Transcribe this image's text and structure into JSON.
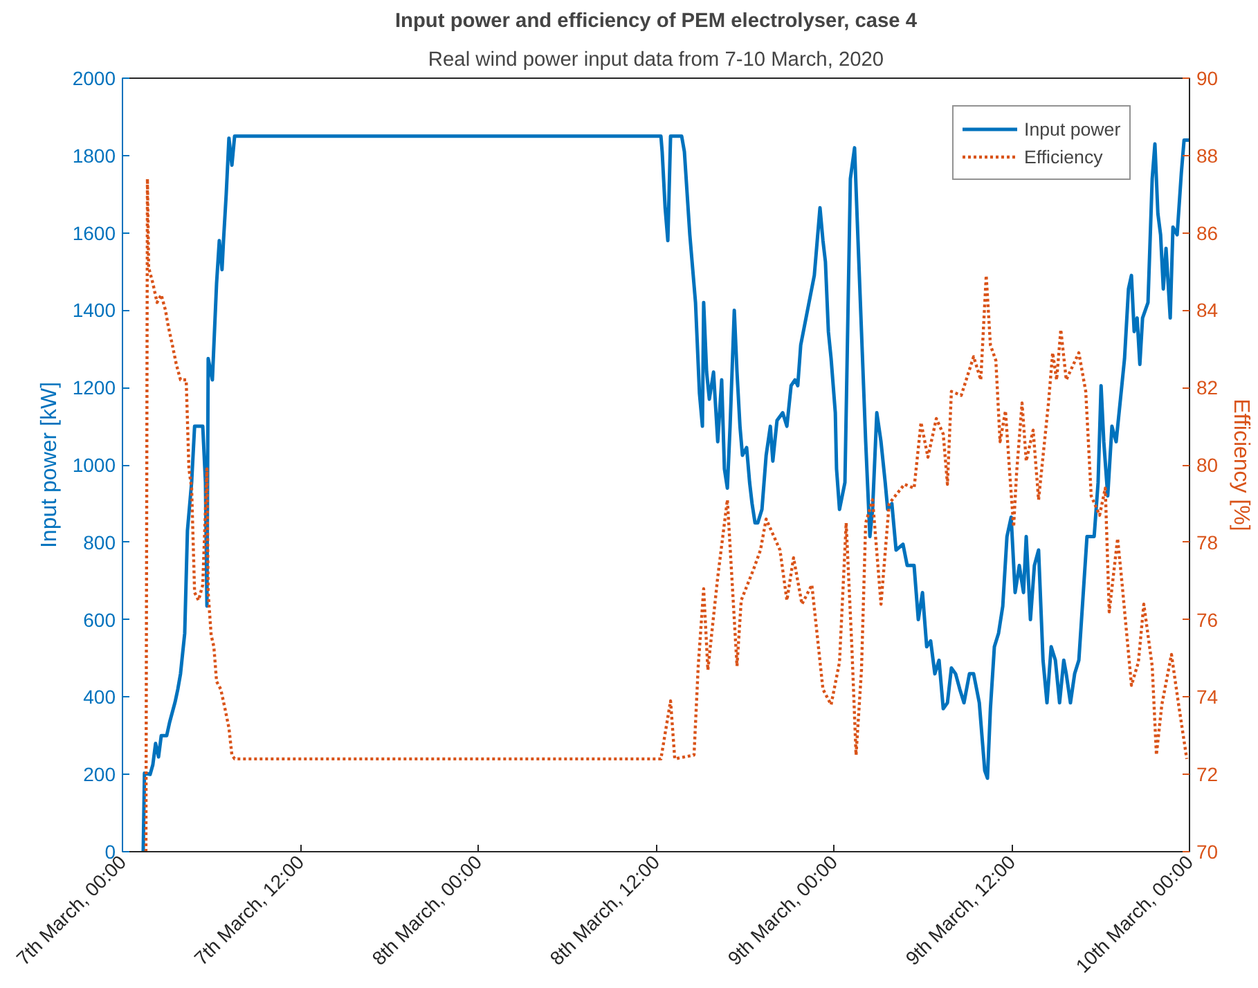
{
  "chart_data": {
    "type": "line",
    "title": "Input power and efficiency of PEM electrolyser, case 4",
    "subtitle": "Real wind power input data from 7-10 March, 2020",
    "ylabel": "Input power [kW]",
    "y2label": "Efficiency [%]",
    "xlim": [
      "2020-03-07T00:00",
      "2020-03-10T00:00"
    ],
    "xticks": [
      {
        "value": "2020-03-07T00:00",
        "label": "7th March, 00:00"
      },
      {
        "value": "2020-03-07T12:00",
        "label": "7th March, 12:00"
      },
      {
        "value": "2020-03-08T00:00",
        "label": "8th March, 00:00"
      },
      {
        "value": "2020-03-08T12:00",
        "label": "8th March, 12:00"
      },
      {
        "value": "2020-03-09T00:00",
        "label": "9th March, 00:00"
      },
      {
        "value": "2020-03-09T12:00",
        "label": "9th March, 12:00"
      },
      {
        "value": "2020-03-10T00:00",
        "label": "10th March, 00:00"
      }
    ],
    "ylim": [
      0,
      2000
    ],
    "yticks": [
      0,
      200,
      400,
      600,
      800,
      1000,
      1200,
      1400,
      1600,
      1800,
      2000
    ],
    "y2lim": [
      70,
      90
    ],
    "y2ticks": [
      70,
      72,
      74,
      76,
      78,
      80,
      82,
      84,
      86,
      88,
      90
    ],
    "grid": false,
    "legend": "top right",
    "marker": "none",
    "series": [
      {
        "name": "Input power",
        "color": "#0072bd",
        "line_style": "solid",
        "x": [
          "2020-03-07T01:24",
          "2020-03-07T01:29",
          "2020-03-07T01:52",
          "2020-03-07T02:03",
          "2020-03-07T02:14",
          "2020-03-07T02:26",
          "2020-03-07T02:37",
          "2020-03-07T02:59",
          "2020-03-07T03:11",
          "2020-03-07T03:33",
          "2020-03-07T03:44",
          "2020-03-07T03:55",
          "2020-03-07T04:12",
          "2020-03-07T04:23",
          "2020-03-07T04:40",
          "2020-03-07T04:52",
          "2020-03-07T05:25",
          "2020-03-07T05:36",
          "2020-03-07T05:42",
          "2020-03-07T05:47",
          "2020-03-07T06:04",
          "2020-03-07T06:21",
          "2020-03-07T06:32",
          "2020-03-07T06:43",
          "2020-03-07T06:49",
          "2020-03-07T07:00",
          "2020-03-07T07:11",
          "2020-03-07T07:23",
          "2020-03-07T07:34",
          "2020-03-08T12:20",
          "2020-03-08T12:25",
          "2020-03-08T12:37",
          "2020-03-08T12:48",
          "2020-03-08T12:59",
          "2020-03-08T13:44",
          "2020-03-08T13:55",
          "2020-03-08T14:17",
          "2020-03-08T14:40",
          "2020-03-08T14:56",
          "2020-03-08T15:08",
          "2020-03-08T15:13",
          "2020-03-08T15:25",
          "2020-03-08T15:36",
          "2020-03-08T15:53",
          "2020-03-08T16:10",
          "2020-03-08T16:26",
          "2020-03-08T16:37",
          "2020-03-08T16:49",
          "2020-03-08T17:00",
          "2020-03-08T17:17",
          "2020-03-08T17:28",
          "2020-03-08T17:40",
          "2020-03-08T17:50",
          "2020-03-08T18:07",
          "2020-03-08T18:19",
          "2020-03-08T18:29",
          "2020-03-08T18:41",
          "2020-03-08T18:52",
          "2020-03-08T19:09",
          "2020-03-08T19:26",
          "2020-03-08T19:43",
          "2020-03-08T19:53",
          "2020-03-08T20:10",
          "2020-03-08T20:33",
          "2020-03-08T20:50",
          "2020-03-08T21:07",
          "2020-03-08T21:23",
          "2020-03-08T21:34",
          "2020-03-08T21:46",
          "2020-03-08T22:41",
          "2020-03-08T23:04",
          "2020-03-08T23:16",
          "2020-03-08T23:26",
          "2020-03-08T23:38",
          "2020-03-08T23:49",
          "2020-03-09T00:06",
          "2020-03-09T00:11",
          "2020-03-09T00:23",
          "2020-03-09T00:45",
          "2020-03-09T01:07",
          "2020-03-09T01:24",
          "2020-03-09T01:35",
          "2020-03-09T01:52",
          "2020-03-09T02:09",
          "2020-03-09T02:26",
          "2020-03-09T02:37",
          "2020-03-09T02:54",
          "2020-03-09T03:11",
          "2020-03-09T03:28",
          "2020-03-09T03:38",
          "2020-03-09T03:55",
          "2020-03-09T04:12",
          "2020-03-09T04:40",
          "2020-03-09T04:57",
          "2020-03-09T05:25",
          "2020-03-09T05:42",
          "2020-03-09T05:59",
          "2020-03-09T06:16",
          "2020-03-09T06:32",
          "2020-03-09T06:49",
          "2020-03-09T07:06",
          "2020-03-09T07:23",
          "2020-03-09T07:40",
          "2020-03-09T07:56",
          "2020-03-09T08:13",
          "2020-03-09T08:30",
          "2020-03-09T08:47",
          "2020-03-09T09:09",
          "2020-03-09T09:26",
          "2020-03-09T09:49",
          "2020-03-09T10:11",
          "2020-03-09T10:22",
          "2020-03-09T10:34",
          "2020-03-09T10:50",
          "2020-03-09T11:07",
          "2020-03-09T11:24",
          "2020-03-09T11:41",
          "2020-03-09T11:58",
          "2020-03-09T12:14",
          "2020-03-09T12:31",
          "2020-03-09T12:48",
          "2020-03-09T12:59",
          "2020-03-09T13:16",
          "2020-03-09T13:32",
          "2020-03-09T13:49",
          "2020-03-09T14:07",
          "2020-03-09T14:23",
          "2020-03-09T14:40",
          "2020-03-09T14:57",
          "2020-03-09T15:14",
          "2020-03-09T15:31",
          "2020-03-09T15:41",
          "2020-03-09T15:58",
          "2020-03-09T16:15",
          "2020-03-09T16:32",
          "2020-03-09T17:05",
          "2020-03-09T17:34",
          "2020-03-09T17:50",
          "2020-03-09T18:02",
          "2020-03-09T18:13",
          "2020-03-09T18:29",
          "2020-03-09T18:46",
          "2020-03-09T19:03",
          "2020-03-09T19:26",
          "2020-03-09T19:37",
          "2020-03-09T19:53",
          "2020-03-09T20:05",
          "2020-03-09T20:16",
          "2020-03-09T20:28",
          "2020-03-09T20:39",
          "2020-03-09T20:50",
          "2020-03-09T21:12",
          "2020-03-09T21:29",
          "2020-03-09T21:40",
          "2020-03-09T21:52",
          "2020-03-09T22:03",
          "2020-03-09T22:14",
          "2020-03-09T22:25",
          "2020-03-09T22:42",
          "2020-03-09T22:53",
          "2020-03-09T23:10",
          "2020-03-09T23:27",
          "2020-03-09T23:38",
          "2020-03-10T00:00"
        ],
        "values": [
          0,
          203,
          200,
          225,
          280,
          245,
          300,
          300,
          335,
          387,
          420,
          460,
          565,
          830,
          955,
          1100,
          1100,
          955,
          635,
          1275,
          1220,
          1470,
          1580,
          1505,
          1580,
          1700,
          1845,
          1775,
          1850,
          1850,
          1810,
          1665,
          1580,
          1850,
          1850,
          1810,
          1595,
          1420,
          1185,
          1100,
          1420,
          1240,
          1170,
          1240,
          1060,
          1220,
          990,
          940,
          1100,
          1400,
          1240,
          1100,
          1025,
          1045,
          955,
          900,
          850,
          850,
          885,
          1025,
          1100,
          1010,
          1115,
          1135,
          1100,
          1205,
          1220,
          1205,
          1310,
          1490,
          1665,
          1580,
          1525,
          1345,
          1275,
          1135,
          990,
          885,
          955,
          1740,
          1820,
          1630,
          1345,
          1060,
          815,
          885,
          1135,
          1060,
          955,
          885,
          900,
          780,
          795,
          740,
          740,
          600,
          670,
          530,
          545,
          460,
          495,
          370,
          385,
          475,
          460,
          420,
          385,
          460,
          460,
          385,
          210,
          190,
          370,
          530,
          565,
          635,
          815,
          865,
          670,
          740,
          670,
          815,
          600,
          740,
          780,
          495,
          385,
          530,
          495,
          385,
          495,
          460,
          385,
          460,
          495,
          815,
          815,
          955,
          1205,
          1060,
          920,
          1100,
          1060,
          1205,
          1275,
          1455,
          1490,
          1345,
          1380,
          1260,
          1380,
          1420,
          1740,
          1830,
          1650,
          1595,
          1455,
          1560,
          1380,
          1615,
          1595,
          1755,
          1840,
          1840
        ]
      },
      {
        "name": "Efficiency",
        "color": "#d95319",
        "line_style": "dotted",
        "axis": "y2",
        "x": [
          "2020-03-07T01:35",
          "2020-03-07T01:41",
          "2020-03-07T01:46",
          "2020-03-07T02:03",
          "2020-03-07T02:20",
          "2020-03-07T02:37",
          "2020-03-07T02:54",
          "2020-03-07T03:05",
          "2020-03-07T03:22",
          "2020-03-07T03:38",
          "2020-03-07T03:55",
          "2020-03-07T04:18",
          "2020-03-07T04:29",
          "2020-03-07T04:40",
          "2020-03-07T04:52",
          "2020-03-07T05:08",
          "2020-03-07T05:25",
          "2020-03-07T05:42",
          "2020-03-07T05:47",
          "2020-03-07T05:59",
          "2020-03-07T06:10",
          "2020-03-07T06:21",
          "2020-03-07T06:38",
          "2020-03-07T06:55",
          "2020-03-07T07:11",
          "2020-03-07T07:23",
          "2020-03-07T07:34",
          "2020-03-08T12:20",
          "2020-03-08T12:59",
          "2020-03-08T13:16",
          "2020-03-08T14:34",
          "2020-03-08T14:51",
          "2020-03-08T15:13",
          "2020-03-08T15:30",
          "2020-03-08T16:10",
          "2020-03-08T16:49",
          "2020-03-08T17:28",
          "2020-03-08T17:45",
          "2020-03-08T18:35",
          "2020-03-08T19:03",
          "2020-03-08T19:26",
          "2020-03-08T20:22",
          "2020-03-08T20:50",
          "2020-03-08T21:17",
          "2020-03-08T21:51",
          "2020-03-08T22:31",
          "2020-03-08T23:16",
          "2020-03-08T23:49",
          "2020-03-09T00:23",
          "2020-03-09T00:50",
          "2020-03-09T01:13",
          "2020-03-09T01:30",
          "2020-03-09T01:52",
          "2020-03-09T02:09",
          "2020-03-09T02:37",
          "2020-03-09T03:11",
          "2020-03-09T03:44",
          "2020-03-09T04:46",
          "2020-03-09T05:25",
          "2020-03-09T05:53",
          "2020-03-09T06:21",
          "2020-03-09T06:55",
          "2020-03-09T07:23",
          "2020-03-09T07:40",
          "2020-03-09T07:56",
          "2020-03-09T08:36",
          "2020-03-09T09:26",
          "2020-03-09T09:55",
          "2020-03-09T10:17",
          "2020-03-09T10:34",
          "2020-03-09T10:56",
          "2020-03-09T11:13",
          "2020-03-09T11:35",
          "2020-03-09T11:52",
          "2020-03-09T12:08",
          "2020-03-09T12:20",
          "2020-03-09T12:42",
          "2020-03-09T12:59",
          "2020-03-09T13:27",
          "2020-03-09T13:49",
          "2020-03-09T14:29",
          "2020-03-09T14:46",
          "2020-03-09T15:02",
          "2020-03-09T15:19",
          "2020-03-09T15:41",
          "2020-03-09T16:32",
          "2020-03-09T17:00",
          "2020-03-09T17:22",
          "2020-03-09T17:56",
          "2020-03-09T18:19",
          "2020-03-09T18:35",
          "2020-03-09T19:09",
          "2020-03-09T19:26",
          "2020-03-09T20:05",
          "2020-03-09T20:33",
          "2020-03-09T20:55",
          "2020-03-09T21:29",
          "2020-03-09T21:46",
          "2020-03-09T22:08",
          "2020-03-09T22:47",
          "2020-03-09T23:16",
          "2020-03-09T23:49"
        ],
        "values": [
          70,
          87.4,
          85.1,
          84.7,
          84.2,
          84.4,
          84.0,
          83.6,
          83.1,
          82.6,
          82.2,
          82.2,
          79.9,
          79.4,
          76.7,
          76.5,
          76.9,
          79.9,
          76.7,
          75.6,
          75.3,
          74.4,
          74.2,
          73.7,
          73.2,
          72.5,
          72.4,
          72.4,
          73.9,
          72.4,
          72.5,
          74.8,
          76.8,
          74.7,
          77.1,
          79.1,
          74.8,
          76.5,
          77.3,
          77.8,
          78.6,
          77.8,
          76.5,
          77.6,
          76.4,
          76.9,
          74.2,
          73.8,
          74.9,
          78.5,
          75.3,
          72.5,
          74.7,
          78.5,
          79.1,
          76.4,
          79.0,
          79.5,
          79.4,
          81.1,
          80.2,
          81.2,
          80.8,
          79.5,
          81.9,
          81.8,
          82.8,
          82.2,
          84.9,
          83.1,
          82.7,
          80.6,
          81.4,
          79.8,
          78.4,
          79.8,
          81.6,
          80.1,
          80.9,
          79.1,
          81.6,
          82.9,
          82.2,
          83.5,
          82.2,
          82.9,
          81.9,
          79.2,
          78.7,
          79.4,
          76.2,
          78.1,
          77.0,
          74.3,
          74.9,
          76.4,
          74.8,
          72.5,
          73.8,
          75.1,
          73.8,
          72.4
        ]
      }
    ]
  }
}
